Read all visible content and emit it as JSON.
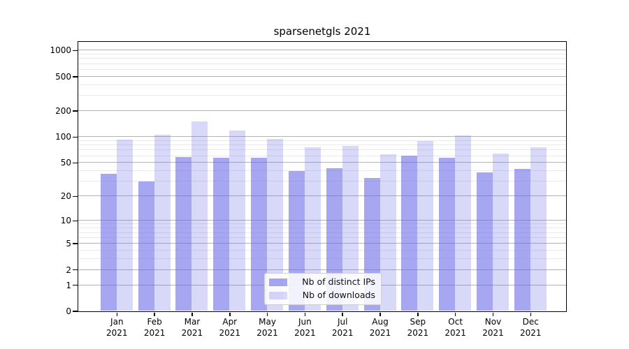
{
  "figure": {
    "title": "sparsenetgls 2021"
  },
  "chart_data": {
    "type": "bar",
    "title": "sparsenetgls 2021",
    "categories": [
      "Jan",
      "Feb",
      "Mar",
      "Apr",
      "May",
      "Jun",
      "Jul",
      "Aug",
      "Sep",
      "Oct",
      "Nov",
      "Dec"
    ],
    "year_label": "2021",
    "series": [
      {
        "name": "Nb of distinct IPs",
        "color": "rgba(100,100,230,0.57)",
        "values": [
          37,
          30,
          58,
          57,
          57,
          40,
          43,
          33,
          60,
          57,
          38,
          42
        ]
      },
      {
        "name": "Nb of downloads",
        "color": "rgba(100,100,230,0.25)",
        "values": [
          93,
          105,
          150,
          118,
          94,
          76,
          78,
          62,
          90,
          103,
          64,
          76
        ]
      }
    ],
    "yscale": "log1p",
    "ylim": [
      0,
      1259
    ],
    "y_major_ticks": [
      0,
      1,
      2,
      5,
      10,
      20,
      50,
      100,
      200,
      500,
      1000
    ],
    "y_minor_ticks": [
      3,
      4,
      6,
      7,
      8,
      9,
      30,
      40,
      60,
      70,
      80,
      90,
      300,
      400,
      600,
      700,
      800,
      900
    ],
    "grid": true,
    "legend_position": "lower center"
  },
  "legend": {
    "items": [
      {
        "label": "Nb of distinct IPs",
        "color": "rgba(100,100,230,0.57)"
      },
      {
        "label": "Nb of downloads",
        "color": "rgba(100,100,230,0.25)"
      }
    ]
  },
  "colors": {
    "bar_distinct_ips_rendered": "#a8a8f5",
    "bar_downloads_rendered": "#d8d8f8",
    "grid_major": "#b3b3b3",
    "grid_minor": "#e9e9ef",
    "axis": "#000000",
    "background": "#ffffff"
  }
}
